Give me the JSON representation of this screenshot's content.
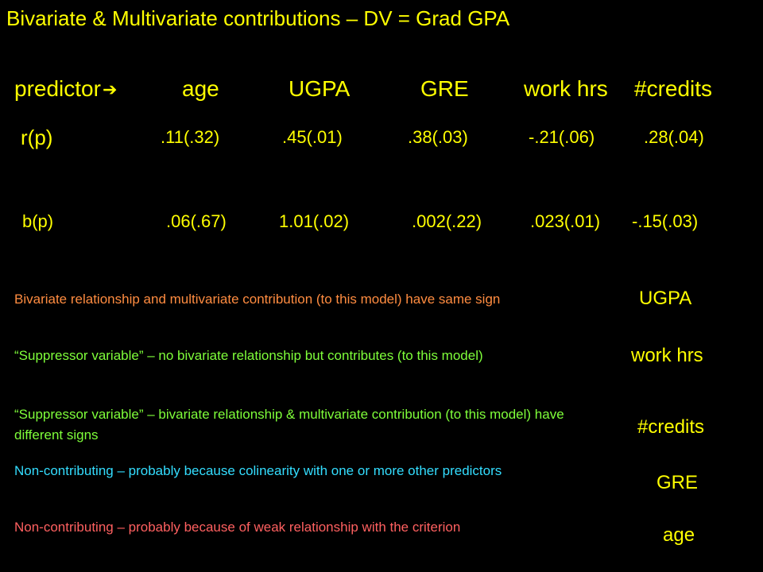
{
  "title": "Bivariate & Multivariate contributions – DV = Grad GPA",
  "table": {
    "header": {
      "label": "predictor",
      "arrow_icon": "➔",
      "columns": [
        "age",
        "UGPA",
        "GRE",
        "work hrs",
        "#credits"
      ]
    },
    "r_row": {
      "label": "r(p)",
      "values": [
        ".11(.32)",
        ".45(.01)",
        ".38(.03)",
        "-.21(.06)",
        ".28(.04)"
      ]
    },
    "b_row": {
      "label": "b(p)",
      "values": [
        ".06(.67)",
        "1.01(.02)",
        ".002(.22)",
        ".023(.01)",
        "-.15(.03)"
      ]
    }
  },
  "notes": [
    {
      "text": "Bivariate relationship and multivariate contribution (to this model) have same sign",
      "color": "#ff8c40",
      "tag": "UGPA",
      "tag_color": "#ffff00"
    },
    {
      "text": "“Suppressor variable” – no bivariate relationship but contributes (to this model)",
      "color": "#7fff3a",
      "tag": "work hrs",
      "tag_color": "#ffff00"
    },
    {
      "text": "“Suppressor variable” – bivariate relationship & multivariate contribution (to this model) have different signs",
      "color": "#7fff3a",
      "tag": "#credits",
      "tag_color": "#ffff00"
    },
    {
      "text": "Non-contributing – probably because colinearity with one or more other predictors",
      "color": "#33ddff",
      "tag": "GRE",
      "tag_color": "#ffff00"
    },
    {
      "text": "Non-contributing – probably because of weak relationship with the criterion",
      "color": "#ff6060",
      "tag": "age",
      "tag_color": "#ffff00"
    }
  ]
}
